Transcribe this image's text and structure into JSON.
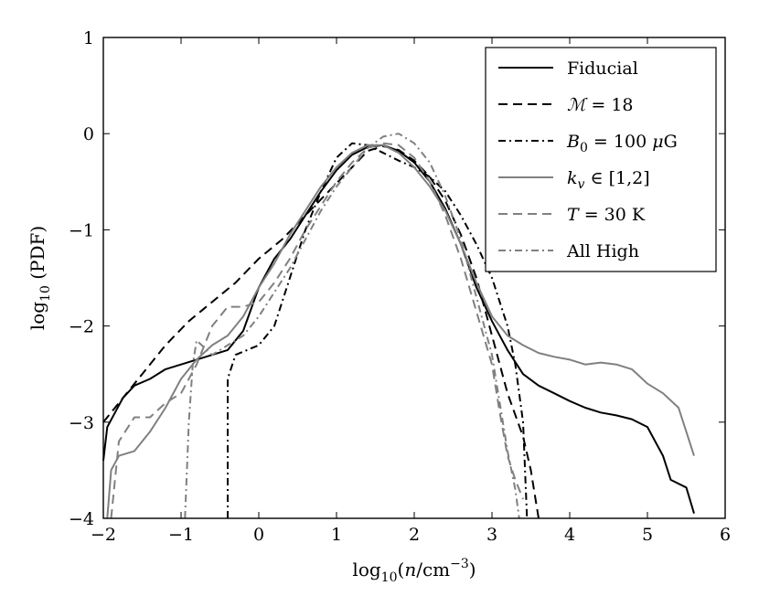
{
  "chart_data": {
    "type": "line",
    "xlabel": "log10(n/cm^-3)",
    "ylabel": "log10 (PDF)",
    "xlim": [
      -2,
      6
    ],
    "ylim": [
      -4,
      1
    ],
    "xticks": [
      -2,
      -1,
      0,
      1,
      2,
      3,
      4,
      5,
      6
    ],
    "yticks": [
      1,
      0,
      -1,
      -2,
      -3,
      -4
    ],
    "xtick_labels": [
      "−2",
      "−1",
      "0",
      "1",
      "2",
      "3",
      "4",
      "5",
      "6"
    ],
    "ytick_labels": [
      "1",
      "0",
      "−1",
      "−2",
      "−3",
      "−4"
    ],
    "legend_position": "top-right",
    "series": [
      {
        "name": "Fiducial",
        "color": "#000000",
        "dash": "solid",
        "points": [
          [
            -2,
            -3.4
          ],
          [
            -1.95,
            -3.05
          ],
          [
            -1.85,
            -2.9
          ],
          [
            -1.75,
            -2.75
          ],
          [
            -1.6,
            -2.62
          ],
          [
            -1.4,
            -2.55
          ],
          [
            -1.2,
            -2.45
          ],
          [
            -1,
            -2.4
          ],
          [
            -0.8,
            -2.35
          ],
          [
            -0.6,
            -2.3
          ],
          [
            -0.4,
            -2.25
          ],
          [
            -0.2,
            -2.05
          ],
          [
            0,
            -1.6
          ],
          [
            0.2,
            -1.3
          ],
          [
            0.4,
            -1.1
          ],
          [
            0.6,
            -0.85
          ],
          [
            0.8,
            -0.6
          ],
          [
            1,
            -0.38
          ],
          [
            1.2,
            -0.22
          ],
          [
            1.4,
            -0.14
          ],
          [
            1.6,
            -0.12
          ],
          [
            1.8,
            -0.18
          ],
          [
            2,
            -0.3
          ],
          [
            2.2,
            -0.5
          ],
          [
            2.4,
            -0.78
          ],
          [
            2.6,
            -1.15
          ],
          [
            2.8,
            -1.6
          ],
          [
            3,
            -1.95
          ],
          [
            3.2,
            -2.25
          ],
          [
            3.4,
            -2.5
          ],
          [
            3.6,
            -2.62
          ],
          [
            3.8,
            -2.7
          ],
          [
            4,
            -2.78
          ],
          [
            4.2,
            -2.85
          ],
          [
            4.4,
            -2.9
          ],
          [
            4.6,
            -2.93
          ],
          [
            4.8,
            -2.97
          ],
          [
            5,
            -3.05
          ],
          [
            5.2,
            -3.35
          ],
          [
            5.3,
            -3.6
          ],
          [
            5.5,
            -3.68
          ],
          [
            5.6,
            -3.95
          ]
        ]
      },
      {
        "name": "ℳ = 18",
        "color": "#000000",
        "dash": "dashed",
        "points": [
          [
            -2,
            -3
          ],
          [
            -1.8,
            -2.8
          ],
          [
            -1.5,
            -2.5
          ],
          [
            -1.2,
            -2.2
          ],
          [
            -0.9,
            -1.95
          ],
          [
            -0.6,
            -1.75
          ],
          [
            -0.3,
            -1.55
          ],
          [
            0,
            -1.3
          ],
          [
            0.3,
            -1.1
          ],
          [
            0.6,
            -0.85
          ],
          [
            0.9,
            -0.6
          ],
          [
            1.2,
            -0.35
          ],
          [
            1.4,
            -0.18
          ],
          [
            1.6,
            -0.13
          ],
          [
            1.8,
            -0.17
          ],
          [
            2,
            -0.28
          ],
          [
            2.2,
            -0.45
          ],
          [
            2.4,
            -0.7
          ],
          [
            2.6,
            -1.05
          ],
          [
            2.8,
            -1.5
          ],
          [
            3,
            -2.1
          ],
          [
            3.2,
            -2.7
          ],
          [
            3.4,
            -3.15
          ],
          [
            3.5,
            -3.5
          ],
          [
            3.6,
            -4
          ]
        ]
      },
      {
        "name": "B0 = 100 μG",
        "color": "#000000",
        "dash": "dashdot",
        "points": [
          [
            -0.4,
            -4
          ],
          [
            -0.4,
            -2.55
          ],
          [
            -0.3,
            -2.3
          ],
          [
            -0.15,
            -2.25
          ],
          [
            0,
            -2.2
          ],
          [
            0.2,
            -2.0
          ],
          [
            0.4,
            -1.5
          ],
          [
            0.6,
            -1.0
          ],
          [
            0.8,
            -0.6
          ],
          [
            1,
            -0.25
          ],
          [
            1.2,
            -0.1
          ],
          [
            1.4,
            -0.12
          ],
          [
            1.6,
            -0.2
          ],
          [
            1.8,
            -0.28
          ],
          [
            2,
            -0.35
          ],
          [
            2.2,
            -0.45
          ],
          [
            2.4,
            -0.6
          ],
          [
            2.6,
            -0.85
          ],
          [
            2.8,
            -1.15
          ],
          [
            3,
            -1.5
          ],
          [
            3.2,
            -2.0
          ],
          [
            3.3,
            -2.4
          ],
          [
            3.4,
            -3.0
          ],
          [
            3.45,
            -4
          ]
        ]
      },
      {
        "name": "k_v ∈ [1,2]",
        "color": "#808080",
        "dash": "solid",
        "points": [
          [
            -1.95,
            -4
          ],
          [
            -1.9,
            -3.5
          ],
          [
            -1.8,
            -3.35
          ],
          [
            -1.6,
            -3.3
          ],
          [
            -1.4,
            -3.1
          ],
          [
            -1.2,
            -2.85
          ],
          [
            -1,
            -2.55
          ],
          [
            -0.8,
            -2.35
          ],
          [
            -0.6,
            -2.2
          ],
          [
            -0.4,
            -2.1
          ],
          [
            -0.2,
            -1.9
          ],
          [
            0,
            -1.6
          ],
          [
            0.2,
            -1.35
          ],
          [
            0.4,
            -1.05
          ],
          [
            0.6,
            -0.8
          ],
          [
            0.8,
            -0.55
          ],
          [
            1,
            -0.35
          ],
          [
            1.2,
            -0.2
          ],
          [
            1.4,
            -0.12
          ],
          [
            1.6,
            -0.12
          ],
          [
            1.8,
            -0.2
          ],
          [
            2,
            -0.35
          ],
          [
            2.2,
            -0.55
          ],
          [
            2.4,
            -0.8
          ],
          [
            2.6,
            -1.15
          ],
          [
            2.8,
            -1.55
          ],
          [
            3,
            -1.9
          ],
          [
            3.2,
            -2.1
          ],
          [
            3.4,
            -2.2
          ],
          [
            3.6,
            -2.28
          ],
          [
            3.8,
            -2.32
          ],
          [
            4,
            -2.35
          ],
          [
            4.2,
            -2.4
          ],
          [
            4.4,
            -2.38
          ],
          [
            4.6,
            -2.4
          ],
          [
            4.8,
            -2.45
          ],
          [
            5,
            -2.6
          ],
          [
            5.2,
            -2.7
          ],
          [
            5.4,
            -2.85
          ],
          [
            5.6,
            -3.35
          ]
        ]
      },
      {
        "name": "T = 30 K",
        "color": "#808080",
        "dash": "dashed",
        "points": [
          [
            -1.9,
            -4
          ],
          [
            -1.8,
            -3.2
          ],
          [
            -1.6,
            -2.95
          ],
          [
            -1.4,
            -2.95
          ],
          [
            -1.2,
            -2.8
          ],
          [
            -1,
            -2.7
          ],
          [
            -0.8,
            -2.4
          ],
          [
            -0.6,
            -2.0
          ],
          [
            -0.4,
            -1.8
          ],
          [
            -0.2,
            -1.8
          ],
          [
            0,
            -1.75
          ],
          [
            0.2,
            -1.55
          ],
          [
            0.4,
            -1.3
          ],
          [
            0.6,
            -1.0
          ],
          [
            0.8,
            -0.75
          ],
          [
            1,
            -0.5
          ],
          [
            1.2,
            -0.3
          ],
          [
            1.4,
            -0.15
          ],
          [
            1.6,
            -0.1
          ],
          [
            1.8,
            -0.12
          ],
          [
            2,
            -0.25
          ],
          [
            2.2,
            -0.5
          ],
          [
            2.4,
            -0.85
          ],
          [
            2.6,
            -1.3
          ],
          [
            2.8,
            -1.85
          ],
          [
            3,
            -2.4
          ],
          [
            3.1,
            -2.9
          ],
          [
            3.2,
            -3.35
          ],
          [
            3.3,
            -3.6
          ],
          [
            3.4,
            -3.8
          ]
        ]
      },
      {
        "name": "All High",
        "color": "#808080",
        "dash": "dashdot",
        "points": [
          [
            -0.95,
            -4
          ],
          [
            -0.9,
            -3.0
          ],
          [
            -0.85,
            -2.4
          ],
          [
            -0.8,
            -2.15
          ],
          [
            -0.6,
            -2.3
          ],
          [
            -0.4,
            -2.2
          ],
          [
            -0.2,
            -2.1
          ],
          [
            0,
            -1.9
          ],
          [
            0.2,
            -1.65
          ],
          [
            0.4,
            -1.4
          ],
          [
            0.6,
            -1.1
          ],
          [
            0.8,
            -0.8
          ],
          [
            1,
            -0.55
          ],
          [
            1.2,
            -0.35
          ],
          [
            1.4,
            -0.15
          ],
          [
            1.6,
            -0.03
          ],
          [
            1.8,
            0
          ],
          [
            2,
            -0.1
          ],
          [
            2.2,
            -0.3
          ],
          [
            2.4,
            -0.65
          ],
          [
            2.6,
            -1.1
          ],
          [
            2.8,
            -1.7
          ],
          [
            3,
            -2.3
          ],
          [
            3.1,
            -2.8
          ],
          [
            3.2,
            -3.3
          ],
          [
            3.3,
            -3.7
          ],
          [
            3.35,
            -4
          ]
        ]
      }
    ]
  }
}
